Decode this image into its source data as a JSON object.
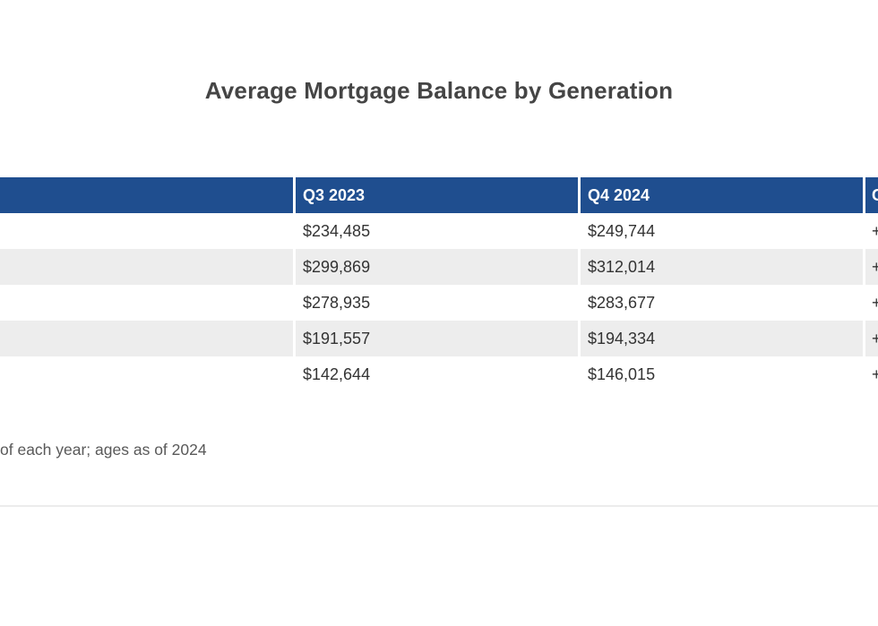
{
  "title": "Average Mortgage Balance by Generation",
  "footnote": "of each year; ages as of 2024",
  "table": {
    "columns": [
      {
        "label": ""
      },
      {
        "label": "Q3 2023"
      },
      {
        "label": "Q4 2024"
      },
      {
        "label": "C"
      }
    ],
    "rows": [
      {
        "label": "",
        "q3": "$234,485",
        "q4": "$249,744",
        "change": "+"
      },
      {
        "label": "",
        "q3": "$299,869",
        "q4": "$312,014",
        "change": "+"
      },
      {
        "label": "",
        "q3": "$278,935",
        "q4": "$283,677",
        "change": "+"
      },
      {
        "label": "",
        "q3": "$191,557",
        "q4": "$194,334",
        "change": "+"
      },
      {
        "label": "",
        "q3": "$142,644",
        "q4": "$146,015",
        "change": "+"
      }
    ]
  },
  "colors": {
    "header_bg": "#1f4e8f",
    "header_text": "#ffffff",
    "row_alt_bg": "#ededed",
    "cell_text": "#333333",
    "title_text": "#454545",
    "footnote_text": "#595959",
    "divider": "#ececec"
  },
  "chart_data": {
    "type": "table",
    "title": "Average Mortgage Balance by Generation",
    "columns": [
      "",
      "Q3 2023",
      "Q4 2024",
      "C"
    ],
    "rows": [
      [
        "",
        "$234,485",
        "$249,744",
        "+"
      ],
      [
        "",
        "$299,869",
        "$312,014",
        "+"
      ],
      [
        "",
        "$278,935",
        "$283,677",
        "+"
      ],
      [
        "",
        "$191,557",
        "$194,334",
        "+"
      ],
      [
        "",
        "$142,644",
        "$146,015",
        "+"
      ]
    ],
    "footnote": "of each year; ages as of 2024",
    "layout": "table clipped at left and right image edges; first column labels and change column values truncated out of view; alternating row shading; blue header band"
  }
}
